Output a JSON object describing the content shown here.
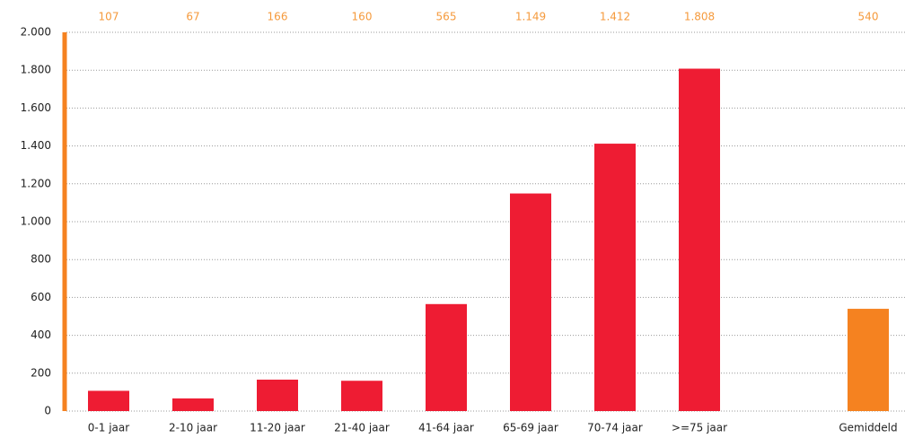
{
  "chart_data": {
    "type": "bar",
    "categories": [
      "0-1 jaar",
      "2-10 jaar",
      "11-20 jaar",
      "21-40 jaar",
      "41-64 jaar",
      "65-69 jaar",
      "70-74 jaar",
      ">=75 jaar",
      null,
      "Gemiddeld"
    ],
    "values": [
      107,
      67,
      166,
      160,
      565,
      1149,
      1412,
      1808,
      null,
      540
    ],
    "value_labels": [
      "107",
      "67",
      "166",
      "160",
      "565",
      "1.149",
      "1.412",
      "1.808",
      null,
      "540"
    ],
    "colors": [
      "#ee1c33",
      "#ee1c33",
      "#ee1c33",
      "#ee1c33",
      "#ee1c33",
      "#ee1c33",
      "#ee1c33",
      "#ee1c33",
      null,
      "#f58220"
    ],
    "value_label_color": "#f59a3c",
    "axis_color": "#f58220",
    "ylim": [
      0,
      2000
    ],
    "yticks": [
      0,
      200,
      400,
      600,
      800,
      {
        "value": 1000,
        "label": "1.000"
      },
      {
        "value": 1200,
        "label": "1.200"
      },
      {
        "value": 1400,
        "label": "1.400"
      },
      {
        "value": 1600,
        "label": "1.600"
      },
      {
        "value": 1800,
        "label": "1.800"
      },
      {
        "value": 2000,
        "label": "2.000"
      }
    ],
    "grid": true
  }
}
